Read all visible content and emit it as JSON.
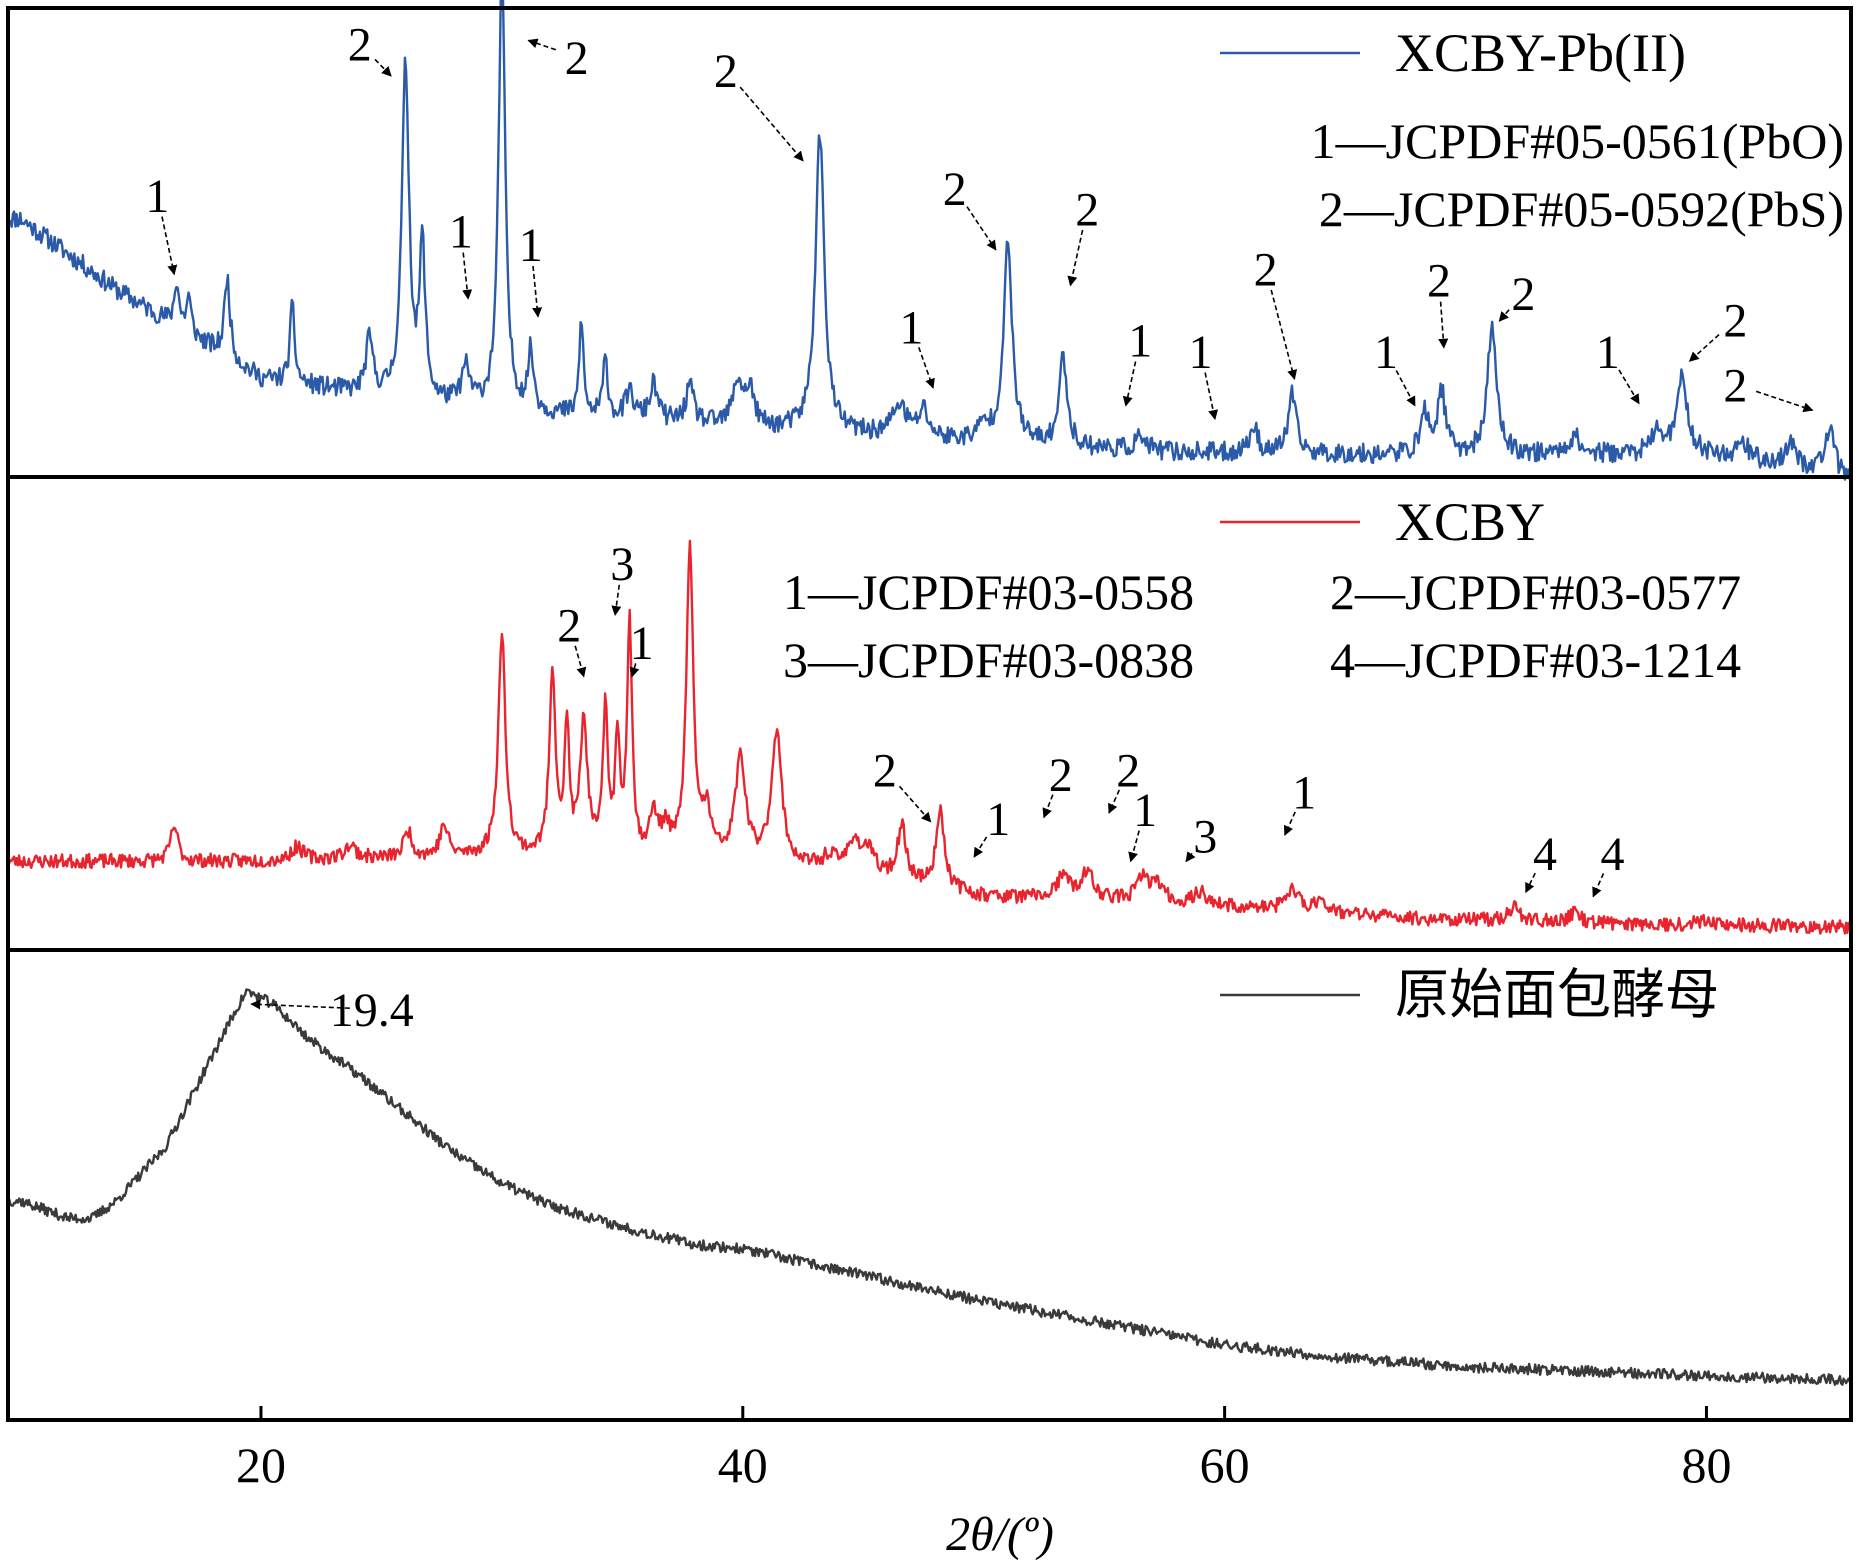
{
  "chart_data": {
    "type": "line",
    "xlabel": "2θ/(º)",
    "xlim": [
      9.5,
      86
    ],
    "xticks": [
      20,
      40,
      60,
      80
    ],
    "grid": false,
    "panels": [
      {
        "id": "top",
        "legend_position": "top-right",
        "series": [
          {
            "name": "XCBY-Pb(II)",
            "color": "#2b5aa8",
            "baseline": [
              [
                10,
                0.58
              ],
              [
                14,
                0.42
              ],
              [
                20,
                0.22
              ],
              [
                26,
                0.17
              ],
              [
                32,
                0.14
              ],
              [
                40,
                0.11
              ],
              [
                46,
                0.09
              ],
              [
                52,
                0.07
              ],
              [
                58,
                0.055
              ],
              [
                66,
                0.05
              ],
              [
                74,
                0.05
              ],
              [
                80,
                0.05
              ],
              [
                86,
                0.0
              ]
            ],
            "peaks": [
              [
                16.5,
                0.1,
                0.12
              ],
              [
                17.0,
                0.08,
                0.12
              ],
              [
                18.6,
                0.18,
                0.14
              ],
              [
                21.3,
                0.17,
                0.12
              ],
              [
                24.5,
                0.12,
                0.18
              ],
              [
                26.0,
                0.75,
                0.18
              ],
              [
                26.7,
                0.34,
                0.14
              ],
              [
                28.5,
                0.08,
                0.2
              ],
              [
                30.0,
                1.0,
                0.16
              ],
              [
                31.2,
                0.13,
                0.14
              ],
              [
                33.3,
                0.22,
                0.1
              ],
              [
                34.3,
                0.13,
                0.12
              ],
              [
                35.3,
                0.06,
                0.2
              ],
              [
                36.3,
                0.08,
                0.2
              ],
              [
                37.8,
                0.08,
                0.2
              ],
              [
                39.8,
                0.1,
                0.25
              ],
              [
                40.3,
                0.08,
                0.2
              ],
              [
                43.2,
                0.67,
                0.22
              ],
              [
                46.5,
                0.07,
                0.35
              ],
              [
                47.5,
                0.06,
                0.25
              ],
              [
                50.0,
                0.03,
                0.3
              ],
              [
                51.0,
                0.44,
                0.22
              ],
              [
                53.3,
                0.2,
                0.2
              ],
              [
                56.5,
                0.03,
                0.25
              ],
              [
                61.2,
                0.06,
                0.2
              ],
              [
                62.8,
                0.13,
                0.2
              ],
              [
                68.3,
                0.09,
                0.2
              ],
              [
                69.0,
                0.14,
                0.2
              ],
              [
                71.1,
                0.29,
                0.22
              ],
              [
                74.5,
                0.04,
                0.3
              ],
              [
                78.0,
                0.05,
                0.3
              ],
              [
                79.0,
                0.17,
                0.25
              ],
              [
                81.5,
                0.04,
                0.3
              ],
              [
                83.5,
                0.05,
                0.3
              ],
              [
                85.1,
                0.1,
                0.22
              ]
            ],
            "noise": 0.022,
            "seed": 11,
            "plot_range": [
              0,
              0.95
            ]
          }
        ],
        "legend": {
          "entries": [
            "XCBY-Pb(II)"
          ],
          "refs": [
            "1—JCPDF#05-0561(PbO)",
            "2—JCPDF#05-0592(PbS)"
          ]
        },
        "annotations": [
          {
            "label": "1",
            "label_x": 15.7,
            "label_y": 0.595,
            "to_x": 16.4,
            "to_y": 0.455
          },
          {
            "label": "2",
            "label_x": 24.1,
            "label_y": 0.935,
            "to_x": 25.4,
            "to_y": 0.9
          },
          {
            "label": "1",
            "label_x": 28.3,
            "label_y": 0.515,
            "to_x": 28.6,
            "to_y": 0.4
          },
          {
            "label": "2",
            "label_x": 33.1,
            "label_y": 0.905,
            "to_x": 31.1,
            "to_y": 0.98
          },
          {
            "label": "1",
            "label_x": 31.2,
            "label_y": 0.485,
            "to_x": 31.5,
            "to_y": 0.36
          },
          {
            "label": "2",
            "label_x": 39.3,
            "label_y": 0.875,
            "to_x": 42.5,
            "to_y": 0.71
          },
          {
            "label": "1",
            "label_x": 47.0,
            "label_y": 0.3,
            "to_x": 47.9,
            "to_y": 0.2
          },
          {
            "label": "2",
            "label_x": 48.8,
            "label_y": 0.61,
            "to_x": 50.5,
            "to_y": 0.51
          },
          {
            "label": "2",
            "label_x": 54.3,
            "label_y": 0.565,
            "to_x": 53.6,
            "to_y": 0.43
          },
          {
            "label": "1",
            "label_x": 56.5,
            "label_y": 0.27,
            "to_x": 55.9,
            "to_y": 0.16
          },
          {
            "label": "1",
            "label_x": 59.0,
            "label_y": 0.245,
            "to_x": 59.6,
            "to_y": 0.13
          },
          {
            "label": "2",
            "label_x": 61.7,
            "label_y": 0.43,
            "to_x": 62.9,
            "to_y": 0.22
          },
          {
            "label": "1",
            "label_x": 66.7,
            "label_y": 0.245,
            "to_x": 67.9,
            "to_y": 0.16
          },
          {
            "label": "2",
            "label_x": 68.9,
            "label_y": 0.405,
            "to_x": 69.1,
            "to_y": 0.29
          },
          {
            "label": "2",
            "label_x": 72.4,
            "label_y": 0.375,
            "to_x": 71.4,
            "to_y": 0.35
          },
          {
            "label": "1",
            "label_x": 75.9,
            "label_y": 0.245,
            "to_x": 77.2,
            "to_y": 0.165
          },
          {
            "label": "2",
            "label_x": 81.2,
            "label_y": 0.315,
            "to_x": 79.3,
            "to_y": 0.26
          },
          {
            "label": "2",
            "label_x": 81.2,
            "label_y": 0.17,
            "to_x": 84.4,
            "to_y": 0.15
          }
        ]
      },
      {
        "id": "middle",
        "legend_position": "top-right",
        "series": [
          {
            "name": "XCBY",
            "color": "#e8242f",
            "baseline": [
              [
                10,
                0.18
              ],
              [
                20,
                0.18
              ],
              [
                28,
                0.19
              ],
              [
                34,
                0.19
              ],
              [
                40,
                0.18
              ],
              [
                45,
                0.15
              ],
              [
                50,
                0.1
              ],
              [
                56,
                0.09
              ],
              [
                62,
                0.07
              ],
              [
                68,
                0.05
              ],
              [
                75,
                0.04
              ],
              [
                86,
                0.03
              ]
            ],
            "peaks": [
              [
                16.4,
                0.08,
                0.18
              ],
              [
                21.5,
                0.03,
                0.3
              ],
              [
                23.7,
                0.03,
                0.3
              ],
              [
                26.1,
                0.06,
                0.2
              ],
              [
                27.6,
                0.07,
                0.2
              ],
              [
                30.0,
                0.5,
                0.18
              ],
              [
                32.1,
                0.42,
                0.15
              ],
              [
                32.7,
                0.28,
                0.12
              ],
              [
                33.4,
                0.3,
                0.18
              ],
              [
                34.3,
                0.33,
                0.12
              ],
              [
                34.8,
                0.25,
                0.12
              ],
              [
                35.3,
                0.54,
                0.12
              ],
              [
                36.3,
                0.09,
                0.2
              ],
              [
                36.8,
                0.06,
                0.2
              ],
              [
                37.8,
                0.7,
                0.17
              ],
              [
                38.5,
                0.1,
                0.2
              ],
              [
                39.9,
                0.23,
                0.25
              ],
              [
                41.4,
                0.3,
                0.25
              ],
              [
                43.6,
                0.03,
                0.3
              ],
              [
                44.6,
                0.07,
                0.3
              ],
              [
                45.2,
                0.05,
                0.3
              ],
              [
                46.6,
                0.12,
                0.22
              ],
              [
                48.2,
                0.18,
                0.2
              ],
              [
                53.3,
                0.05,
                0.3
              ],
              [
                54.3,
                0.06,
                0.3
              ],
              [
                56.6,
                0.05,
                0.3
              ],
              [
                57.2,
                0.04,
                0.3
              ],
              [
                59.0,
                0.03,
                0.3
              ],
              [
                62.8,
                0.05,
                0.3
              ],
              [
                64.0,
                0.03,
                0.3
              ],
              [
                72.0,
                0.03,
                0.3
              ],
              [
                74.5,
                0.02,
                0.3
              ],
              [
                80.0,
                0.015,
                0.3
              ]
            ],
            "noise": 0.016,
            "seed": 23,
            "plot_range": [
              0.02,
              0.95
            ]
          }
        ],
        "legend": {
          "entries": [
            "XCBY"
          ],
          "refs": [
            "1—JCPDF#03-0558",
            "2—JCPDF#03-0577",
            "3—JCPDF#03-0838",
            "4—JCPDF#03-1214"
          ]
        },
        "annotations": [
          {
            "label": "2",
            "label_x": 32.8,
            "label_y": 0.68,
            "to_x": 33.4,
            "to_y": 0.6
          },
          {
            "label": "3",
            "label_x": 35.0,
            "label_y": 0.82,
            "to_x": 34.7,
            "to_y": 0.74
          },
          {
            "label": "1",
            "label_x": 35.8,
            "label_y": 0.64,
            "to_x": 35.4,
            "to_y": 0.6
          },
          {
            "label": "2",
            "label_x": 45.9,
            "label_y": 0.35,
            "to_x": 47.8,
            "to_y": 0.27
          },
          {
            "label": "1",
            "label_x": 50.6,
            "label_y": 0.24,
            "to_x": 49.6,
            "to_y": 0.19
          },
          {
            "label": "2",
            "label_x": 53.2,
            "label_y": 0.34,
            "to_x": 52.5,
            "to_y": 0.28
          },
          {
            "label": "2",
            "label_x": 56.0,
            "label_y": 0.35,
            "to_x": 55.2,
            "to_y": 0.29
          },
          {
            "label": "1",
            "label_x": 56.7,
            "label_y": 0.26,
            "to_x": 56.1,
            "to_y": 0.18
          },
          {
            "label": "3",
            "label_x": 59.2,
            "label_y": 0.2,
            "to_x": 58.4,
            "to_y": 0.18
          },
          {
            "label": "1",
            "label_x": 63.3,
            "label_y": 0.3,
            "to_x": 62.5,
            "to_y": 0.24
          },
          {
            "label": "4",
            "label_x": 73.3,
            "label_y": 0.16,
            "to_x": 72.5,
            "to_y": 0.11
          },
          {
            "label": "4",
            "label_x": 76.1,
            "label_y": 0.16,
            "to_x": 75.3,
            "to_y": 0.1
          }
        ]
      },
      {
        "id": "bottom",
        "legend_position": "top-right",
        "series": [
          {
            "name": "原始面包酵母",
            "color": "#3a3a3a",
            "baseline": [
              [
                10,
                0.48
              ],
              [
                12,
                0.44
              ],
              [
                13,
                0.44
              ],
              [
                14,
                0.48
              ],
              [
                16,
                0.6
              ],
              [
                17.5,
                0.76
              ],
              [
                18.8,
                0.9
              ],
              [
                19.4,
                0.96
              ],
              [
                20.5,
                0.93
              ],
              [
                22,
                0.85
              ],
              [
                24,
                0.77
              ],
              [
                26,
                0.68
              ],
              [
                28,
                0.59
              ],
              [
                30,
                0.52
              ],
              [
                32,
                0.47
              ],
              [
                35,
                0.42
              ],
              [
                38,
                0.38
              ],
              [
                40,
                0.37
              ],
              [
                45,
                0.31
              ],
              [
                50,
                0.25
              ],
              [
                55,
                0.2
              ],
              [
                60,
                0.15
              ],
              [
                65,
                0.12
              ],
              [
                70,
                0.1
              ],
              [
                75,
                0.09
              ],
              [
                80,
                0.08
              ],
              [
                86,
                0.07
              ]
            ],
            "peaks": [],
            "noise": 0.012,
            "seed": 37,
            "plot_range": [
              0.02,
              0.95
            ]
          }
        ],
        "legend": {
          "entries": [
            "原始面包酵母"
          ],
          "refs": []
        },
        "annotations": [
          {
            "label": "19.4",
            "label_x": 24.6,
            "label_y": 0.88,
            "to_x": 19.6,
            "to_y": 0.93
          }
        ]
      }
    ]
  }
}
